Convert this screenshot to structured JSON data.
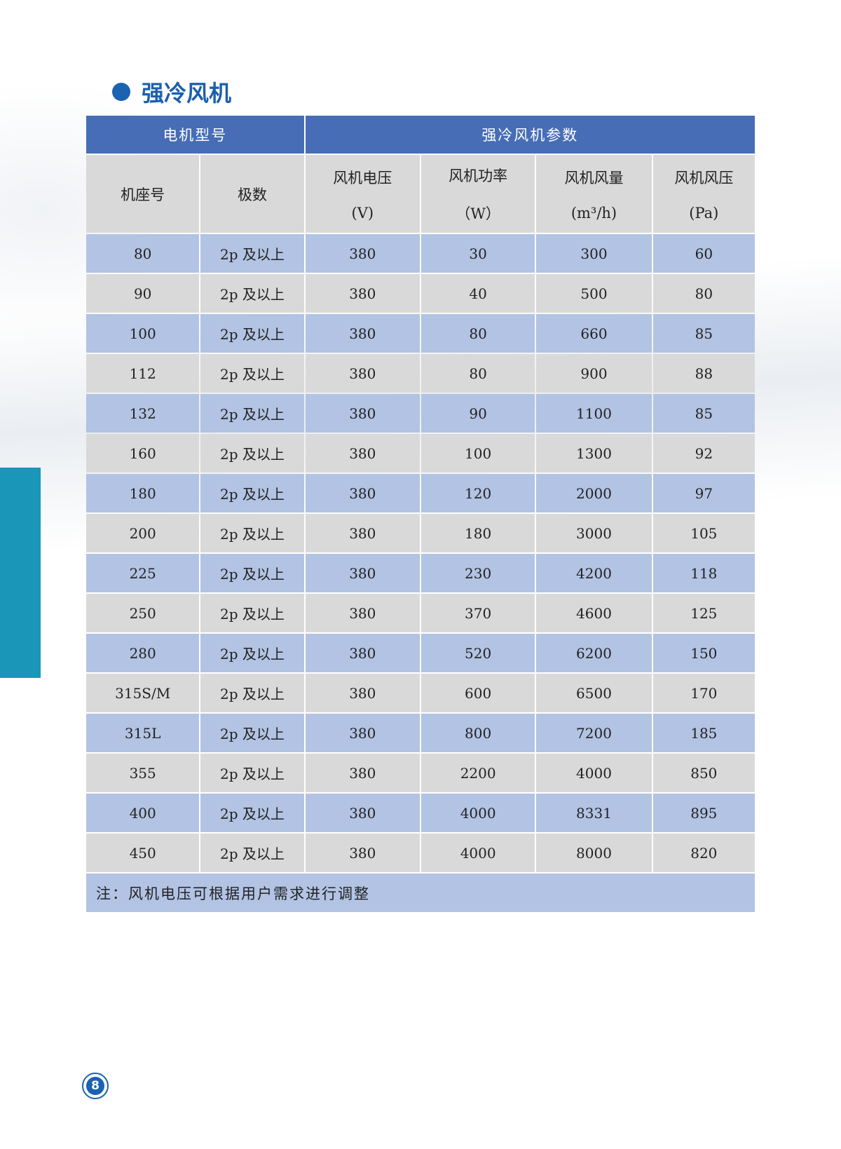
{
  "title": "强冷风机",
  "table": {
    "group_headers": [
      "电机型号",
      "强冷风机参数"
    ],
    "columns": [
      {
        "label": "机座号",
        "unit": ""
      },
      {
        "label": "极数",
        "unit": ""
      },
      {
        "label": "风机电压",
        "unit": "(V)"
      },
      {
        "label": "风机功率",
        "unit": "（W）"
      },
      {
        "label": "风机风量",
        "unit": "(m³/h)"
      },
      {
        "label": "风机风压",
        "unit": "(Pa)"
      }
    ],
    "rows": [
      [
        "80",
        "2p 及以上",
        "380",
        "30",
        "300",
        "60"
      ],
      [
        "90",
        "2p 及以上",
        "380",
        "40",
        "500",
        "80"
      ],
      [
        "100",
        "2p 及以上",
        "380",
        "80",
        "660",
        "85"
      ],
      [
        "112",
        "2p 及以上",
        "380",
        "80",
        "900",
        "88"
      ],
      [
        "132",
        "2p 及以上",
        "380",
        "90",
        "1100",
        "85"
      ],
      [
        "160",
        "2p 及以上",
        "380",
        "100",
        "1300",
        "92"
      ],
      [
        "180",
        "2p 及以上",
        "380",
        "120",
        "2000",
        "97"
      ],
      [
        "200",
        "2p 及以上",
        "380",
        "180",
        "3000",
        "105"
      ],
      [
        "225",
        "2p 及以上",
        "380",
        "230",
        "4200",
        "118"
      ],
      [
        "250",
        "2p 及以上",
        "380",
        "370",
        "4600",
        "125"
      ],
      [
        "280",
        "2p 及以上",
        "380",
        "520",
        "6200",
        "150"
      ],
      [
        "315S/M",
        "2p 及以上",
        "380",
        "600",
        "6500",
        "170"
      ],
      [
        "315L",
        "2p 及以上",
        "380",
        "800",
        "7200",
        "185"
      ],
      [
        "355",
        "2p 及以上",
        "380",
        "2200",
        "4000",
        "850"
      ],
      [
        "400",
        "2p 及以上",
        "380",
        "4000",
        "8331",
        "895"
      ],
      [
        "450",
        "2p 及以上",
        "380",
        "4000",
        "8000",
        "820"
      ]
    ],
    "note": "注：风机电压可根据用户需求进行调整"
  },
  "page_number": "8",
  "colors": {
    "header_blue": "#466db6",
    "row_blue": "#b2c3e4",
    "row_gray": "#d9d9d9",
    "title_blue": "#1b5fae",
    "side_teal": "#1a96b8"
  }
}
